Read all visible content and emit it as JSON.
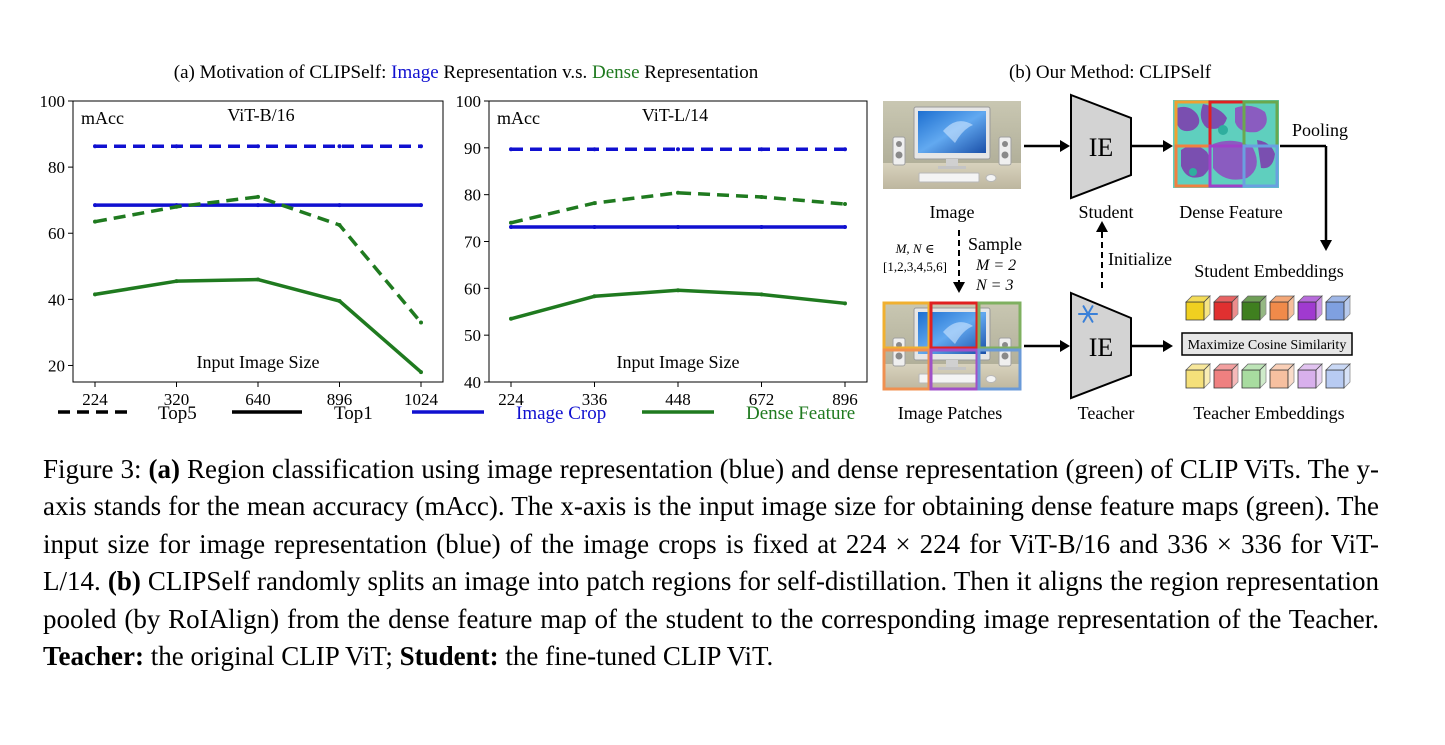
{
  "figure": {
    "panel_a_title": {
      "prefix": "(a) Motivation of CLIPSelf: ",
      "image_word": "Image",
      "middle": " Representation v.s. ",
      "dense_word": "Dense",
      "suffix": " Representation"
    },
    "panel_b_title": "(b) Our Method: CLIPSelf",
    "colors": {
      "image_crop": "#1010d0",
      "dense_feature": "#1f7a1f",
      "text": "#000000"
    },
    "legend": [
      {
        "label": "Top5",
        "style": "dashed",
        "color": "#000000"
      },
      {
        "label": "Top1",
        "style": "solid",
        "color": "#000000"
      },
      {
        "label": "Image Crop",
        "style": "solid",
        "color": "#1010d0"
      },
      {
        "label": "Dense Feature",
        "style": "solid",
        "color": "#1f7a1f"
      }
    ],
    "diagram": {
      "image_label": "Image",
      "student_label": "Student",
      "teacher_label": "Teacher",
      "ie_student": "IE",
      "ie_teacher": "IE",
      "dense_feature_label": "Dense Feature",
      "pooling_label": "Pooling",
      "initialize_label": "Initialize",
      "student_embeddings_label": "Student Embeddings",
      "teacher_embeddings_label": "Teacher Embeddings",
      "image_patches_label": "Image Patches",
      "cosine_label": "Maximize Cosine Similarity",
      "sample_label": "Sample",
      "mn_set_line1": "M, N ∈",
      "mn_set_line2": "[1,2,3,4,5,6]",
      "m_eq": "M = 2",
      "n_eq": "N = 3",
      "embedding_colors_student": [
        "#f0d020",
        "#e03030",
        "#3f7f1f",
        "#f08a4a",
        "#a03ad0",
        "#7fa0e0"
      ],
      "embedding_colors_teacher": [
        "#f5e07a",
        "#ef8080",
        "#a8dca0",
        "#f7c0a0",
        "#d8b0ec",
        "#b8cbf2"
      ]
    }
  },
  "chart_data": [
    {
      "type": "line",
      "title": "ViT-B/16",
      "ylabel": "mAcc",
      "xlabel": "Input Image Size",
      "categories": [
        "224",
        "320",
        "640",
        "896",
        "1024"
      ],
      "ylim": [
        15,
        100
      ],
      "yticks": [
        20,
        40,
        60,
        80,
        100
      ],
      "series": [
        {
          "name": "Image Crop",
          "metric": "Top5",
          "values": [
            86.3,
            86.3,
            86.3,
            86.3,
            86.3
          ]
        },
        {
          "name": "Image Crop",
          "metric": "Top1",
          "values": [
            68.5,
            68.5,
            68.5,
            68.5,
            68.5
          ]
        },
        {
          "name": "Dense Feature",
          "metric": "Top5",
          "values": [
            63.5,
            68.0,
            71.0,
            62.5,
            33.0
          ]
        },
        {
          "name": "Dense Feature",
          "metric": "Top1",
          "values": [
            41.5,
            45.5,
            46.0,
            39.5,
            18.0
          ]
        }
      ]
    },
    {
      "type": "line",
      "title": "ViT-L/14",
      "ylabel": "mAcc",
      "xlabel": "Input Image Size",
      "categories": [
        "224",
        "336",
        "448",
        "672",
        "896"
      ],
      "ylim": [
        40,
        100
      ],
      "yticks": [
        40,
        50,
        60,
        70,
        80,
        90,
        100
      ],
      "series": [
        {
          "name": "Image Crop",
          "metric": "Top5",
          "values": [
            89.7,
            89.7,
            89.7,
            89.7,
            89.7
          ]
        },
        {
          "name": "Image Crop",
          "metric": "Top1",
          "values": [
            73.1,
            73.1,
            73.1,
            73.1,
            73.1
          ]
        },
        {
          "name": "Dense Feature",
          "metric": "Top5",
          "values": [
            74.0,
            78.2,
            80.4,
            79.5,
            78.0
          ]
        },
        {
          "name": "Dense Feature",
          "metric": "Top1",
          "values": [
            53.5,
            58.3,
            59.6,
            58.7,
            56.8
          ]
        }
      ]
    }
  ],
  "caption": {
    "fig_label": "Figure 3:",
    "a_label": "(a)",
    "part1": "Region classification using image representation (blue) and dense representation (green) of CLIP ViTs. The y-axis stands for the mean accuracy (mAcc). The x-axis is the input image size for obtaining dense feature maps (green). The input size for image representation (blue) of the image crops is fixed at 224 × 224 for ViT-B/16 and 336 × 336 for ViT-L/14.",
    "b_label": "(b)",
    "part2": "CLIPSelf randomly splits an image into patch regions for self-distillation. Then it aligns the region representation pooled (by RoIAlign) from the dense feature map of the student to the corresponding image representation of the Teacher.",
    "teacher_label": "Teacher:",
    "teacher_text": "the original CLIP ViT;",
    "student_label": "Student:",
    "student_text": "the fine-tuned CLIP ViT."
  }
}
